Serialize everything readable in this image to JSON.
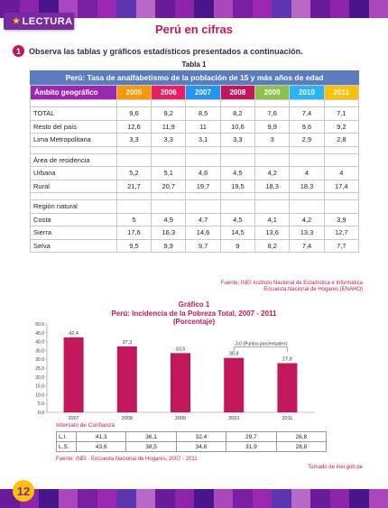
{
  "header": {
    "tag": "LECTURA",
    "title": "Perú en cifras"
  },
  "instruction": {
    "number": "1",
    "text": "Observa las tablas y gráficos estadísticos presentados a continuación."
  },
  "table1": {
    "caption": "Tabla 1",
    "title": "Perú: Tasa de analfabetismo de la población de 15 y más años de edad",
    "col_header": "Ámbito geográfico",
    "years": [
      "2005",
      "2006",
      "2007",
      "2008",
      "2009",
      "2010",
      "2011"
    ],
    "year_colors": [
      "#ff9800",
      "#e91e63",
      "#2196f3",
      "#c2185b",
      "#8bc34a",
      "#29b6f6",
      "#ffc107"
    ],
    "rows": [
      {
        "label": "TOTAL",
        "values": [
          "9,6",
          "9,2",
          "8,5",
          "8,2",
          "7,6",
          "7,4",
          "7,1"
        ]
      },
      {
        "label": "Resto del país",
        "values": [
          "12,6",
          "11,9",
          "11",
          "10,6",
          "9,9",
          "9,6",
          "9,2"
        ]
      },
      {
        "label": "Lima Metropolitana",
        "values": [
          "3,3",
          "3,3",
          "3,1",
          "3,3",
          "3",
          "2,9",
          "2,8"
        ]
      },
      {
        "label": "Área de residencia",
        "values": [
          "",
          "",
          "",
          "",
          "",
          "",
          ""
        ]
      },
      {
        "label": "Urbana",
        "values": [
          "5,2",
          "5,1",
          "4,6",
          "4,5",
          "4,2",
          "4",
          "4"
        ]
      },
      {
        "label": "Rural",
        "values": [
          "21,7",
          "20,7",
          "19,7",
          "19,5",
          "18,3",
          "18,3",
          "17,4"
        ]
      },
      {
        "label": "Región natural",
        "values": [
          "",
          "",
          "",
          "",
          "",
          "",
          ""
        ]
      },
      {
        "label": "Costa",
        "values": [
          "5",
          "4,9",
          "4,7",
          "4,5",
          "4,1",
          "4,2",
          "3,9"
        ]
      },
      {
        "label": "Sierra",
        "values": [
          "17,6",
          "16,3",
          "14,6",
          "14,5",
          "13,6",
          "13,3",
          "12,7"
        ]
      },
      {
        "label": "Selva",
        "values": [
          "9,5",
          "9,9",
          "9,7",
          "9",
          "8,2",
          "7,4",
          "7,7"
        ]
      }
    ],
    "source_line1": "Fuente: INEI Instituto Nacional de Estadística e Informática",
    "source_line2": "Encuesta Nacional de Hogares (ENAHO)"
  },
  "chart_data": {
    "type": "bar",
    "caption": "Gráfico 1",
    "title": "Perú: Incidencia de la Pobreza Total, 2007 - 2011",
    "subtitle": "(Porcentaje)",
    "categories": [
      "2007",
      "2008",
      "2009",
      "2010",
      "2011"
    ],
    "values": [
      42.4,
      37.3,
      33.5,
      30.8,
      27.8
    ],
    "value_labels": [
      "42,4",
      "37,3",
      "33,5",
      "30,8",
      "27,8"
    ],
    "yticks": [
      "0.0",
      "5.0",
      "10.0",
      "15.0",
      "20.0",
      "25.0",
      "30.0",
      "35.0",
      "40.0",
      "45.0",
      "50.0"
    ],
    "ylim": [
      0,
      50
    ],
    "bar_color": "#c2185b",
    "annotation": "-3,0 (Puntos porcentuales)",
    "grid": false
  },
  "confidence": {
    "label": "Intervalo de Confianza",
    "rows": [
      {
        "label": "L.I.",
        "values": [
          "41,3",
          "36,1",
          "32,4",
          "29,7",
          "26,8"
        ]
      },
      {
        "label": "L.S.",
        "values": [
          "43,6",
          "38,5",
          "34,6",
          "31,9",
          "28,8"
        ]
      }
    ]
  },
  "chart_source": "Fuente: INEI - Encuesta Nacional de Hogares, 2007 - 2011",
  "credit": "Tomado de inei.gob.pe",
  "page_number": "12",
  "band_colors": [
    "#6a1b9a",
    "#8e24aa",
    "#4a148c",
    "#ab47bc",
    "#7b1fa2",
    "#9c27b0",
    "#5e35b1",
    "#ba68c8",
    "#6a1b9a",
    "#8e24aa",
    "#4a148c",
    "#ab47bc",
    "#7b1fa2",
    "#9c27b0",
    "#5e35b1",
    "#ba68c8",
    "#6a1b9a",
    "#8e24aa",
    "#4a148c",
    "#ab47bc"
  ]
}
